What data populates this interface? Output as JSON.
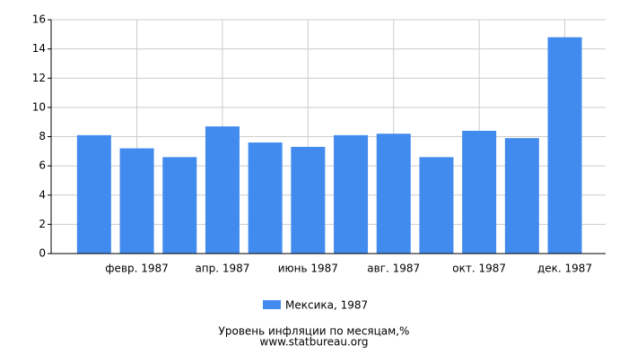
{
  "chart_data": {
    "type": "bar",
    "title": "Уровень инфляции по месяцам,%",
    "subtitle": "www.statbureau.org",
    "categories": [
      null,
      "февр. 1987",
      null,
      "апр. 1987",
      null,
      "июнь 1987",
      null,
      "авг. 1987",
      null,
      "окт. 1987",
      null,
      "дек. 1987"
    ],
    "series": [
      {
        "name": "Мексика, 1987",
        "color": "#428bee",
        "values": [
          8.1,
          7.2,
          6.6,
          8.7,
          7.6,
          7.3,
          8.1,
          8.2,
          6.6,
          8.4,
          7.9,
          14.8
        ]
      }
    ],
    "ylim": [
      0,
      16
    ],
    "yticks": [
      0,
      2,
      4,
      6,
      8,
      10,
      12,
      14,
      16
    ],
    "grid": true
  }
}
